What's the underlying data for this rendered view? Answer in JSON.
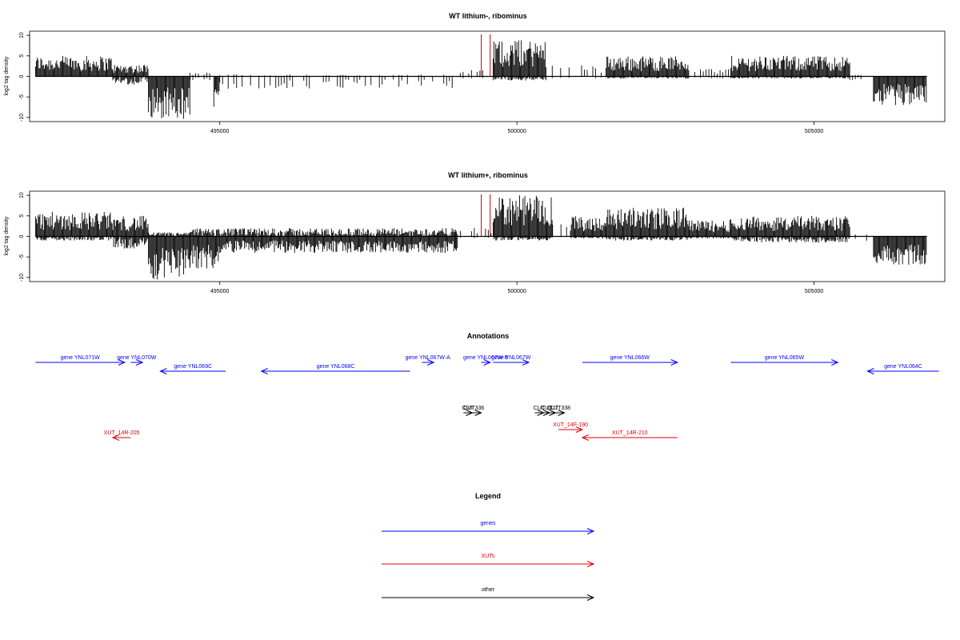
{
  "chart_data": [
    {
      "type": "bar",
      "title": "WT lithium-, ribominus",
      "ylabel": "log2 tag density",
      "xlabel": "",
      "xlim": [
        491800,
        507200
      ],
      "ylim": [
        -11,
        11
      ],
      "x_ticks": [
        495000,
        500000,
        505000
      ],
      "x_tick_labels": [
        "495000",
        "500000",
        "505000"
      ],
      "y_ticks": [
        -10,
        -5,
        0,
        5,
        10
      ],
      "y_tick_labels": [
        "-10",
        "-5",
        "0",
        "5",
        "10"
      ],
      "marker_lines": [
        499400,
        499550
      ],
      "marker_color": "#cc0000",
      "density_envelope": [
        {
          "from": 491900,
          "to": 493200,
          "min": 0,
          "max": 5
        },
        {
          "from": 493200,
          "to": 493800,
          "min": -2,
          "max": 3
        },
        {
          "from": 493800,
          "to": 494500,
          "min": -10.5,
          "max": 0
        },
        {
          "from": 494500,
          "to": 494900,
          "min": -1,
          "max": 1
        },
        {
          "from": 494900,
          "to": 495000,
          "min": -8,
          "max": 0
        },
        {
          "from": 495000,
          "to": 499000,
          "min": -3,
          "max": 0.5
        },
        {
          "from": 499000,
          "to": 499600,
          "min": -0.5,
          "max": 2
        },
        {
          "from": 499600,
          "to": 500500,
          "min": -1,
          "max": 9
        },
        {
          "from": 500500,
          "to": 500900,
          "min": -0.5,
          "max": 3
        },
        {
          "from": 500900,
          "to": 501500,
          "min": -0.5,
          "max": 3
        },
        {
          "from": 501500,
          "to": 502900,
          "min": -0.5,
          "max": 5
        },
        {
          "from": 502900,
          "to": 503600,
          "min": -0.5,
          "max": 2
        },
        {
          "from": 503600,
          "to": 505600,
          "min": -0.5,
          "max": 5
        },
        {
          "from": 505600,
          "to": 506000,
          "min": -1,
          "max": 0.5
        },
        {
          "from": 506000,
          "to": 506900,
          "min": -7,
          "max": 0
        }
      ]
    },
    {
      "type": "bar",
      "title": "WT lithium+, ribominus",
      "ylabel": "log2 tag density",
      "xlabel": "",
      "xlim": [
        491800,
        507200
      ],
      "ylim": [
        -11,
        11
      ],
      "x_ticks": [
        495000,
        500000,
        505000
      ],
      "x_tick_labels": [
        "495000",
        "500000",
        "505000"
      ],
      "y_ticks": [
        -10,
        -5,
        0,
        5,
        10
      ],
      "y_tick_labels": [
        "-10",
        "-5",
        "0",
        "5",
        "10"
      ],
      "marker_lines": [
        499400,
        499550
      ],
      "marker_color": "#cc0000",
      "density_envelope": [
        {
          "from": 491900,
          "to": 493200,
          "min": -1,
          "max": 6
        },
        {
          "from": 493200,
          "to": 493800,
          "min": -3,
          "max": 5
        },
        {
          "from": 493800,
          "to": 494500,
          "min": -10.5,
          "max": 1
        },
        {
          "from": 494500,
          "to": 495000,
          "min": -8,
          "max": 2
        },
        {
          "from": 495000,
          "to": 499000,
          "min": -4,
          "max": 2
        },
        {
          "from": 499000,
          "to": 499600,
          "min": -0.5,
          "max": 2
        },
        {
          "from": 499600,
          "to": 500600,
          "min": -1,
          "max": 10
        },
        {
          "from": 500600,
          "to": 500900,
          "min": -0.5,
          "max": 3
        },
        {
          "from": 500900,
          "to": 501500,
          "min": -0.5,
          "max": 5
        },
        {
          "from": 501500,
          "to": 502900,
          "min": -1,
          "max": 7
        },
        {
          "from": 502900,
          "to": 503600,
          "min": -0.5,
          "max": 4
        },
        {
          "from": 503600,
          "to": 505600,
          "min": -1.5,
          "max": 5
        },
        {
          "from": 505600,
          "to": 506000,
          "min": -2,
          "max": 0.5
        },
        {
          "from": 506000,
          "to": 506900,
          "min": -7,
          "max": 0
        }
      ]
    }
  ],
  "annotations": {
    "title": "Annotations",
    "features": [
      {
        "label": "gene YNL071W",
        "start": 491900,
        "end": 493400,
        "strand": "+",
        "kind": "gene",
        "row": 0
      },
      {
        "label": "gene YNL070W",
        "start": 493500,
        "end": 493700,
        "strand": "+",
        "kind": "gene",
        "row": 0
      },
      {
        "label": "gene YNL069C",
        "start": 494000,
        "end": 495100,
        "strand": "-",
        "kind": "gene",
        "row": 1
      },
      {
        "label": "gene YNL068C",
        "start": 495700,
        "end": 498200,
        "strand": "-",
        "kind": "gene",
        "row": 1
      },
      {
        "label": "gene YNL067W-A",
        "start": 498400,
        "end": 498600,
        "strand": "+",
        "kind": "gene",
        "row": 0
      },
      {
        "label": "gene YNL067W-B",
        "start": 499400,
        "end": 499550,
        "strand": "+",
        "kind": "gene",
        "row": 0
      },
      {
        "label": "gene YNL067W",
        "start": 499600,
        "end": 500200,
        "strand": "+",
        "kind": "gene",
        "row": 0
      },
      {
        "label": "gene YNL066W",
        "start": 501100,
        "end": 502700,
        "strand": "+",
        "kind": "gene",
        "row": 0
      },
      {
        "label": "gene YNL065W",
        "start": 503600,
        "end": 505400,
        "strand": "+",
        "kind": "gene",
        "row": 0
      },
      {
        "label": "gene YNL064C",
        "start": 505900,
        "end": 507100,
        "strand": "-",
        "kind": "gene",
        "row": 1
      },
      {
        "label": "CUT",
        "start": 499100,
        "end": 499250,
        "strand": "+",
        "kind": "other",
        "row": 2
      },
      {
        "label": "CUT336",
        "start": 499150,
        "end": 499400,
        "strand": "+",
        "kind": "other",
        "row": 2
      },
      {
        "label": "CUT",
        "start": 500300,
        "end": 500450,
        "strand": "+",
        "kind": "other",
        "row": 2
      },
      {
        "label": "CUT",
        "start": 500450,
        "end": 500550,
        "strand": "+",
        "kind": "other",
        "row": 2
      },
      {
        "label": "CUT",
        "start": 500550,
        "end": 500650,
        "strand": "+",
        "kind": "other",
        "row": 2
      },
      {
        "label": "CUT338",
        "start": 500650,
        "end": 500800,
        "strand": "+",
        "kind": "other",
        "row": 2
      },
      {
        "label": "XUT_14R-205",
        "start": 493200,
        "end": 493500,
        "strand": "-",
        "kind": "xut",
        "row": 4
      },
      {
        "label": "XUT_14F-190",
        "start": 500700,
        "end": 501100,
        "strand": "+",
        "kind": "xut",
        "row": 3
      },
      {
        "label": "XUT_14R-210",
        "start": 501100,
        "end": 502700,
        "strand": "-",
        "kind": "xut",
        "row": 4
      }
    ]
  },
  "legend": {
    "title": "Legend",
    "items": [
      {
        "label": "genes",
        "color": "#0000ff"
      },
      {
        "label": "XUTs",
        "color": "#dd0000"
      },
      {
        "label": "other",
        "color": "#000000"
      }
    ]
  },
  "colors": {
    "gene": "#0000ff",
    "xut": "#dd0000",
    "other": "#000000",
    "density": "#000000"
  }
}
